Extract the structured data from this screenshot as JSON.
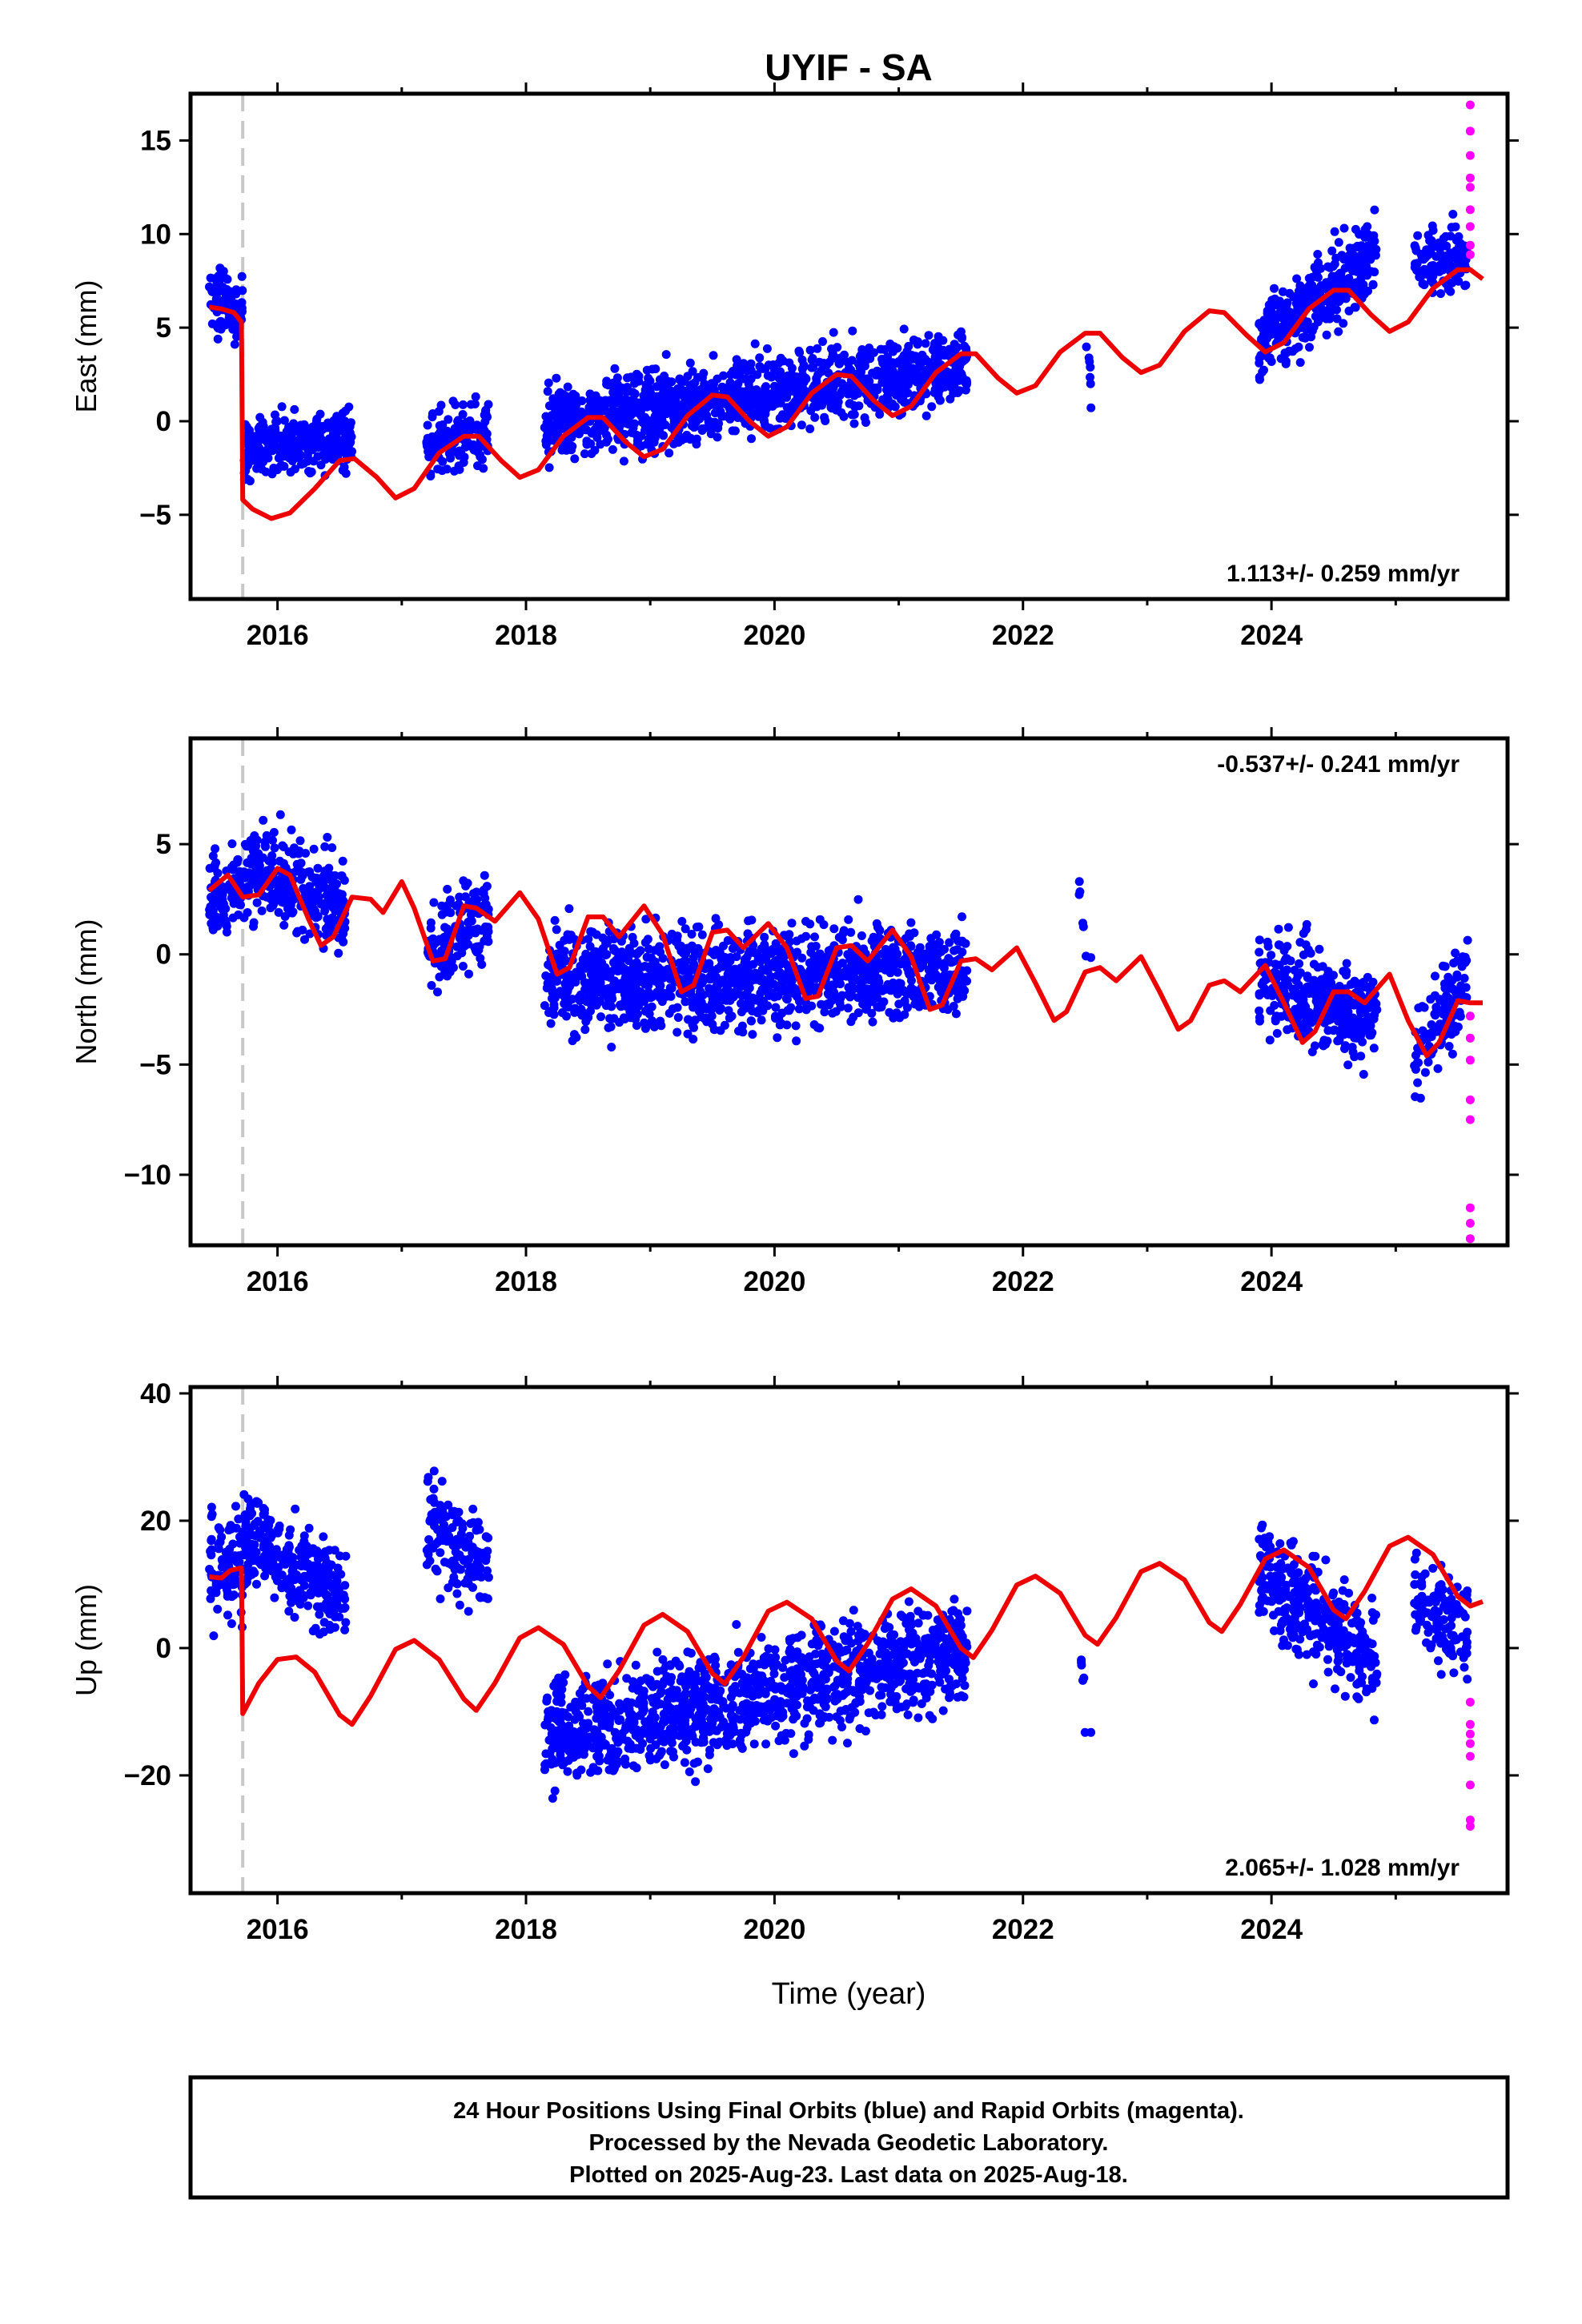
{
  "title": "UYIF - SA",
  "xlabel": "Time (year)",
  "footer": {
    "line1": "24 Hour Positions Using Final Orbits (blue) and Rapid Orbits (magenta).",
    "line2": "Processed by the Nevada Geodetic Laboratory.",
    "line3": "Plotted on 2025-Aug-23. Last data on 2025-Aug-18."
  },
  "colors": {
    "final": "#0000ff",
    "rapid": "#ff00ff",
    "model": "#ee0000",
    "offset_line": "#c8c8c8",
    "frame": "#000000"
  },
  "chart_data": [
    {
      "type": "scatter",
      "name": "east",
      "ylabel": "East (mm)",
      "rate": "1.113+/- 0.259 mm/yr",
      "rate_position": "bottom-right",
      "xlim": [
        2015.3,
        2025.9
      ],
      "ylim": [
        -9.5,
        17.5
      ],
      "xticks": [
        2016,
        2018,
        2020,
        2022,
        2024
      ],
      "yticks": [
        -5,
        0,
        5,
        10,
        15
      ],
      "offset_epoch": 2015.72,
      "rapid_points": [
        [
          2025.6,
          16.9
        ],
        [
          2025.6,
          15.5
        ],
        [
          2025.6,
          14.2
        ],
        [
          2025.6,
          13
        ],
        [
          2025.6,
          12.5
        ],
        [
          2025.6,
          11.3
        ],
        [
          2025.6,
          10.4
        ],
        [
          2025.6,
          9.4
        ],
        [
          2025.6,
          8.9
        ]
      ],
      "model_points": [
        [
          2015.45,
          6.1
        ],
        [
          2015.55,
          6.0
        ],
        [
          2015.65,
          5.8
        ],
        [
          2015.71,
          5.3
        ],
        [
          2015.72,
          -4.2
        ],
        [
          2015.8,
          -4.7
        ],
        [
          2015.95,
          -5.2
        ],
        [
          2016.1,
          -4.9
        ],
        [
          2016.3,
          -3.6
        ],
        [
          2016.5,
          -2.1
        ],
        [
          2016.62,
          -2.0
        ],
        [
          2016.8,
          -3.0
        ],
        [
          2016.95,
          -4.1
        ],
        [
          2017.1,
          -3.6
        ],
        [
          2017.3,
          -1.7
        ],
        [
          2017.5,
          -0.8
        ],
        [
          2017.62,
          -0.8
        ],
        [
          2017.8,
          -2.1
        ],
        [
          2017.95,
          -3.0
        ],
        [
          2018.1,
          -2.6
        ],
        [
          2018.3,
          -0.8
        ],
        [
          2018.5,
          0.2
        ],
        [
          2018.62,
          0.2
        ],
        [
          2018.8,
          -1.1
        ],
        [
          2018.95,
          -1.9
        ],
        [
          2019.1,
          -1.5
        ],
        [
          2019.3,
          0.3
        ],
        [
          2019.5,
          1.4
        ],
        [
          2019.62,
          1.3
        ],
        [
          2019.8,
          0.0
        ],
        [
          2019.95,
          -0.8
        ],
        [
          2020.1,
          -0.3
        ],
        [
          2020.3,
          1.5
        ],
        [
          2020.5,
          2.5
        ],
        [
          2020.62,
          2.4
        ],
        [
          2020.8,
          1.1
        ],
        [
          2020.95,
          0.3
        ],
        [
          2021.1,
          0.8
        ],
        [
          2021.3,
          2.6
        ],
        [
          2021.5,
          3.6
        ],
        [
          2021.62,
          3.6
        ],
        [
          2021.8,
          2.3
        ],
        [
          2021.95,
          1.5
        ],
        [
          2022.1,
          1.9
        ],
        [
          2022.3,
          3.7
        ],
        [
          2022.5,
          4.7
        ],
        [
          2022.62,
          4.7
        ],
        [
          2022.8,
          3.4
        ],
        [
          2022.95,
          2.6
        ],
        [
          2023.1,
          3.0
        ],
        [
          2023.3,
          4.8
        ],
        [
          2023.5,
          5.9
        ],
        [
          2023.62,
          5.8
        ],
        [
          2023.8,
          4.6
        ],
        [
          2023.95,
          3.7
        ],
        [
          2024.1,
          4.2
        ],
        [
          2024.3,
          6.0
        ],
        [
          2024.5,
          7.0
        ],
        [
          2024.62,
          7.0
        ],
        [
          2024.8,
          5.7
        ],
        [
          2024.95,
          4.8
        ],
        [
          2025.1,
          5.3
        ],
        [
          2025.3,
          7.1
        ],
        [
          2025.5,
          8.1
        ],
        [
          2025.6,
          8.1
        ],
        [
          2025.7,
          7.6
        ]
      ],
      "final_segments": [
        {
          "from": 2015.45,
          "to": 2015.72,
          "start": 6.5,
          "end": 5.8,
          "spread": 1.2,
          "density": 1.0
        },
        {
          "from": 2015.73,
          "to": 2016.6,
          "start": -1.5,
          "end": -0.8,
          "spread": 1.1,
          "density": 1.0
        },
        {
          "from": 2017.2,
          "to": 2017.7,
          "start": -1.6,
          "end": -0.6,
          "spread": 1.3,
          "density": 0.8
        },
        {
          "from": 2018.15,
          "to": 2021.55,
          "start": -0.2,
          "end": 3.0,
          "spread": 1.4,
          "density": 1.0
        },
        {
          "from": 2022.45,
          "to": 2022.55,
          "start": 3.2,
          "end": 2.8,
          "spread": 1.8,
          "density": 0.2
        },
        {
          "from": 2023.9,
          "to": 2024.85,
          "start": 4.2,
          "end": 9.0,
          "spread": 1.5,
          "density": 1.0
        },
        {
          "from": 2025.15,
          "to": 2025.58,
          "start": 8.6,
          "end": 8.7,
          "spread": 1.2,
          "density": 0.8
        }
      ]
    },
    {
      "type": "scatter",
      "name": "north",
      "ylabel": "North (mm)",
      "rate": "-0.537+/- 0.241 mm/yr",
      "rate_position": "top-right",
      "xlim": [
        2015.3,
        2025.9
      ],
      "ylim": [
        -13.2,
        9.8
      ],
      "xticks": [
        2016,
        2018,
        2020,
        2022,
        2024
      ],
      "yticks": [
        -10,
        -5,
        0,
        5
      ],
      "offset_epoch": 2015.72,
      "rapid_points": [
        [
          2025.6,
          -2.8
        ],
        [
          2025.6,
          -3.8
        ],
        [
          2025.6,
          -4.8
        ],
        [
          2025.6,
          -6.6
        ],
        [
          2025.6,
          -7.5
        ],
        [
          2025.6,
          -11.5
        ],
        [
          2025.6,
          -12.2
        ],
        [
          2025.6,
          -12.9
        ]
      ],
      "model_points": [
        [
          2015.45,
          2.9
        ],
        [
          2015.6,
          3.6
        ],
        [
          2015.72,
          2.6
        ],
        [
          2015.85,
          2.7
        ],
        [
          2016.0,
          3.9
        ],
        [
          2016.1,
          3.6
        ],
        [
          2016.25,
          1.6
        ],
        [
          2016.35,
          0.4
        ],
        [
          2016.45,
          0.8
        ],
        [
          2016.6,
          2.6
        ],
        [
          2016.75,
          2.5
        ],
        [
          2016.85,
          1.9
        ],
        [
          2017.0,
          3.3
        ],
        [
          2017.1,
          2.1
        ],
        [
          2017.25,
          -0.3
        ],
        [
          2017.35,
          -0.2
        ],
        [
          2017.5,
          2.2
        ],
        [
          2017.6,
          2.1
        ],
        [
          2017.75,
          1.5
        ],
        [
          2017.95,
          2.8
        ],
        [
          2018.1,
          1.6
        ],
        [
          2018.25,
          -0.9
        ],
        [
          2018.35,
          -0.6
        ],
        [
          2018.5,
          1.7
        ],
        [
          2018.62,
          1.7
        ],
        [
          2018.75,
          0.8
        ],
        [
          2018.95,
          2.2
        ],
        [
          2019.1,
          0.9
        ],
        [
          2019.25,
          -1.7
        ],
        [
          2019.35,
          -1.4
        ],
        [
          2019.5,
          1.0
        ],
        [
          2019.62,
          1.1
        ],
        [
          2019.75,
          0.3
        ],
        [
          2019.95,
          1.4
        ],
        [
          2020.1,
          0.3
        ],
        [
          2020.25,
          -2.0
        ],
        [
          2020.35,
          -1.9
        ],
        [
          2020.5,
          0.3
        ],
        [
          2020.62,
          0.4
        ],
        [
          2020.75,
          -0.3
        ],
        [
          2020.95,
          1.1
        ],
        [
          2021.1,
          -0.1
        ],
        [
          2021.25,
          -2.5
        ],
        [
          2021.35,
          -2.3
        ],
        [
          2021.5,
          -0.3
        ],
        [
          2021.62,
          -0.2
        ],
        [
          2021.75,
          -0.7
        ],
        [
          2021.95,
          0.3
        ],
        [
          2022.1,
          -1.3
        ],
        [
          2022.25,
          -3.0
        ],
        [
          2022.35,
          -2.6
        ],
        [
          2022.5,
          -0.8
        ],
        [
          2022.62,
          -0.6
        ],
        [
          2022.75,
          -1.2
        ],
        [
          2022.95,
          -0.1
        ],
        [
          2023.1,
          -1.7
        ],
        [
          2023.25,
          -3.4
        ],
        [
          2023.35,
          -3.0
        ],
        [
          2023.5,
          -1.4
        ],
        [
          2023.62,
          -1.2
        ],
        [
          2023.75,
          -1.7
        ],
        [
          2023.95,
          -0.5
        ],
        [
          2024.1,
          -2.2
        ],
        [
          2024.25,
          -4.0
        ],
        [
          2024.35,
          -3.5
        ],
        [
          2024.5,
          -1.7
        ],
        [
          2024.62,
          -1.7
        ],
        [
          2024.75,
          -2.2
        ],
        [
          2024.95,
          -0.9
        ],
        [
          2025.1,
          -3.0
        ],
        [
          2025.25,
          -4.6
        ],
        [
          2025.35,
          -4.0
        ],
        [
          2025.5,
          -2.1
        ],
        [
          2025.6,
          -2.2
        ],
        [
          2025.7,
          -2.2
        ]
      ],
      "final_segments": [
        {
          "from": 2015.45,
          "to": 2015.72,
          "start": 2.5,
          "end": 3.2,
          "spread": 1.4,
          "density": 1.0
        },
        {
          "from": 2015.73,
          "to": 2016.55,
          "start": 3.8,
          "end": 2.2,
          "spread": 1.5,
          "density": 1.0
        },
        {
          "from": 2017.2,
          "to": 2017.7,
          "start": 0.2,
          "end": 2.0,
          "spread": 1.4,
          "density": 0.8
        },
        {
          "from": 2018.15,
          "to": 2021.55,
          "start": -1.2,
          "end": -0.8,
          "spread": 1.6,
          "density": 1.0
        },
        {
          "from": 2022.45,
          "to": 2022.55,
          "start": 2.5,
          "end": 1.0,
          "spread": 2.0,
          "density": 0.2
        },
        {
          "from": 2023.9,
          "to": 2024.85,
          "start": -1.0,
          "end": -3.0,
          "spread": 1.6,
          "density": 1.0
        },
        {
          "from": 2025.15,
          "to": 2025.58,
          "start": -4.5,
          "end": -1.0,
          "spread": 1.5,
          "density": 0.8
        }
      ]
    },
    {
      "type": "scatter",
      "name": "up",
      "ylabel": "Up (mm)",
      "rate": "2.065+/- 1.028 mm/yr",
      "rate_position": "bottom-right",
      "xlim": [
        2015.3,
        2025.9
      ],
      "ylim": [
        -38.5,
        41
      ],
      "xticks": [
        2016,
        2018,
        2020,
        2022,
        2024
      ],
      "yticks": [
        -20,
        0,
        20,
        40
      ],
      "offset_epoch": 2015.72,
      "rapid_points": [
        [
          2025.6,
          -8.5
        ],
        [
          2025.6,
          -12
        ],
        [
          2025.6,
          -13.5
        ],
        [
          2025.6,
          -15
        ],
        [
          2025.6,
          -17
        ],
        [
          2025.6,
          -21.5
        ],
        [
          2025.6,
          -27
        ],
        [
          2025.6,
          -28
        ]
      ],
      "model_points": [
        [
          2015.45,
          11.2
        ],
        [
          2015.55,
          11.0
        ],
        [
          2015.62,
          12.2
        ],
        [
          2015.71,
          12.6
        ],
        [
          2015.72,
          -10.3
        ],
        [
          2015.85,
          -5.5
        ],
        [
          2016.0,
          -1.8
        ],
        [
          2016.15,
          -1.4
        ],
        [
          2016.3,
          -3.8
        ],
        [
          2016.5,
          -10.5
        ],
        [
          2016.6,
          -12.0
        ],
        [
          2016.75,
          -7.5
        ],
        [
          2016.95,
          -0.2
        ],
        [
          2017.1,
          1.2
        ],
        [
          2017.3,
          -1.8
        ],
        [
          2017.5,
          -8.0
        ],
        [
          2017.6,
          -9.8
        ],
        [
          2017.75,
          -5.5
        ],
        [
          2017.95,
          1.6
        ],
        [
          2018.1,
          3.2
        ],
        [
          2018.3,
          0.6
        ],
        [
          2018.5,
          -6.0
        ],
        [
          2018.6,
          -7.8
        ],
        [
          2018.75,
          -3.5
        ],
        [
          2018.95,
          3.6
        ],
        [
          2019.1,
          5.3
        ],
        [
          2019.3,
          2.6
        ],
        [
          2019.5,
          -4.0
        ],
        [
          2019.6,
          -5.6
        ],
        [
          2019.75,
          -1.4
        ],
        [
          2019.95,
          5.8
        ],
        [
          2020.1,
          7.2
        ],
        [
          2020.3,
          4.6
        ],
        [
          2020.5,
          -2.0
        ],
        [
          2020.6,
          -3.6
        ],
        [
          2020.75,
          0.7
        ],
        [
          2020.95,
          7.7
        ],
        [
          2021.1,
          9.3
        ],
        [
          2021.3,
          6.6
        ],
        [
          2021.5,
          0.0
        ],
        [
          2021.6,
          -1.5
        ],
        [
          2021.75,
          2.8
        ],
        [
          2021.95,
          9.9
        ],
        [
          2022.1,
          11.3
        ],
        [
          2022.3,
          8.6
        ],
        [
          2022.5,
          2.0
        ],
        [
          2022.6,
          0.6
        ],
        [
          2022.75,
          4.8
        ],
        [
          2022.95,
          12.0
        ],
        [
          2023.1,
          13.3
        ],
        [
          2023.3,
          10.7
        ],
        [
          2023.5,
          4.0
        ],
        [
          2023.6,
          2.6
        ],
        [
          2023.75,
          6.9
        ],
        [
          2023.95,
          14.0
        ],
        [
          2024.1,
          15.4
        ],
        [
          2024.3,
          12.7
        ],
        [
          2024.5,
          6.0
        ],
        [
          2024.6,
          4.6
        ],
        [
          2024.75,
          8.9
        ],
        [
          2024.95,
          16.0
        ],
        [
          2025.1,
          17.4
        ],
        [
          2025.3,
          14.7
        ],
        [
          2025.5,
          8.1
        ],
        [
          2025.6,
          6.6
        ],
        [
          2025.7,
          7.3
        ]
      ],
      "final_segments": [
        {
          "from": 2015.45,
          "to": 2015.72,
          "start": 14.0,
          "end": 12.0,
          "spread": 6.5,
          "density": 1.0
        },
        {
          "from": 2015.73,
          "to": 2016.55,
          "start": 18.0,
          "end": 7.0,
          "spread": 5.0,
          "density": 1.0
        },
        {
          "from": 2017.2,
          "to": 2017.7,
          "start": 20.0,
          "end": 12.0,
          "spread": 6.0,
          "density": 0.8
        },
        {
          "from": 2018.15,
          "to": 2021.55,
          "start": -14.0,
          "end": 0.0,
          "spread": 6.0,
          "density": 1.0
        },
        {
          "from": 2022.45,
          "to": 2022.55,
          "start": -5.0,
          "end": -15.0,
          "spread": 6.0,
          "density": 0.2
        },
        {
          "from": 2023.9,
          "to": 2024.85,
          "start": 12.0,
          "end": -2.0,
          "spread": 6.0,
          "density": 1.0
        },
        {
          "from": 2025.15,
          "to": 2025.58,
          "start": 8.0,
          "end": 2.0,
          "spread": 5.0,
          "density": 0.8
        }
      ]
    }
  ]
}
